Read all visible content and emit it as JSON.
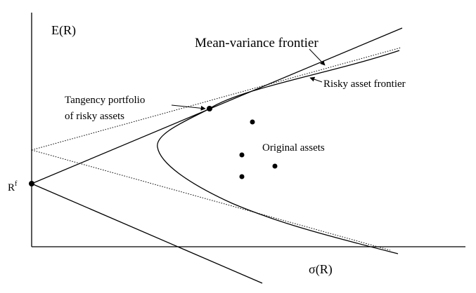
{
  "labels": {
    "y_axis": "E(R)",
    "x_axis": "σ(R)",
    "risk_free": "R",
    "risk_free_superscript": "f",
    "mean_variance_frontier": "Mean-variance frontier",
    "risky_asset_frontier": "Risky asset frontier",
    "tangency_line1": "Tangency portfolio",
    "tangency_line2": "of risky assets",
    "original_assets": "Original assets"
  }
}
